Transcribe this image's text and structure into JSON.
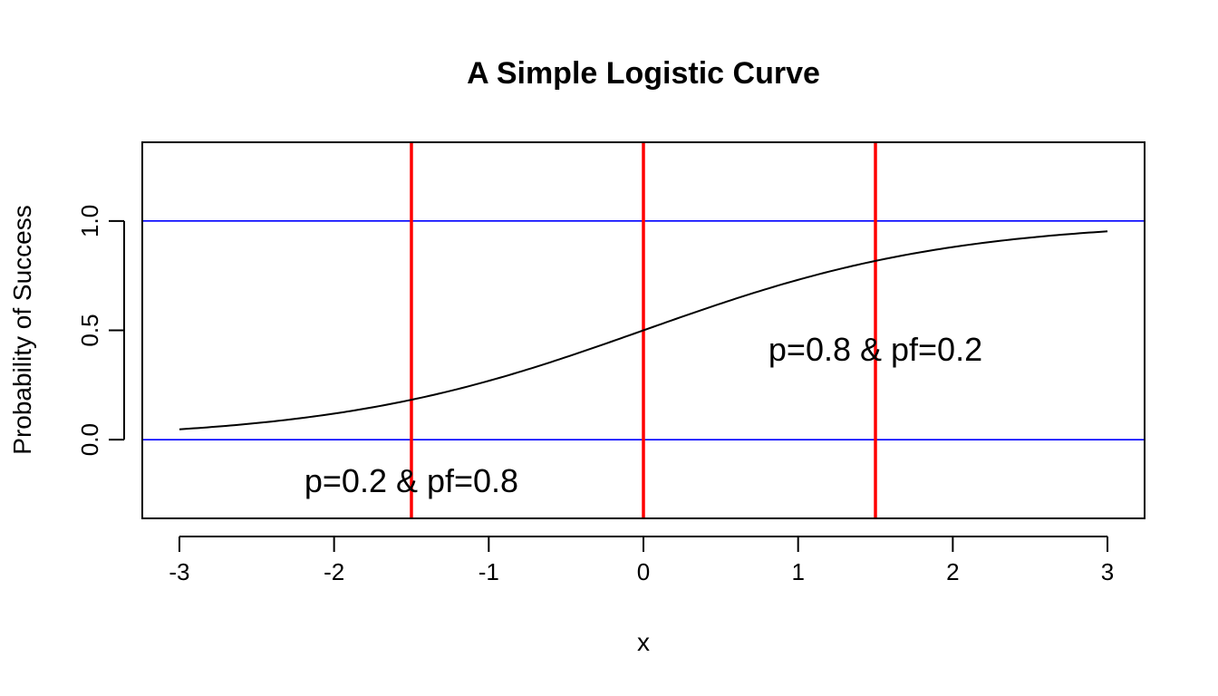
{
  "chart_data": {
    "type": "line",
    "title": "A Simple Logistic Curve",
    "xlabel": "x",
    "ylabel": "Probability of Success",
    "xlim": [
      -3.24,
      3.24
    ],
    "ylim": [
      -0.36,
      1.36
    ],
    "grid": false,
    "x_ticks": [
      -3,
      -2,
      -1,
      0,
      1,
      2,
      3
    ],
    "y_ticks": [
      0.0,
      0.5,
      1.0
    ],
    "y_tick_labels": [
      "0.0",
      "0.5",
      "1.0"
    ],
    "x_tick_labels": [
      "-3",
      "-2",
      "-1",
      "0",
      "1",
      "2",
      "3"
    ],
    "series": [
      {
        "function": "logistic",
        "x": [
          -3.0,
          -2.5,
          -2.0,
          -1.5,
          -1.0,
          -0.5,
          0.0,
          0.5,
          1.0,
          1.5,
          2.0,
          2.5,
          3.0
        ],
        "values": [
          0.047,
          0.076,
          0.119,
          0.182,
          0.269,
          0.378,
          0.5,
          0.622,
          0.731,
          0.818,
          0.881,
          0.924,
          0.953
        ],
        "color": "#000000"
      }
    ],
    "hlines": [
      {
        "y": 0.0,
        "color": "#0000ff"
      },
      {
        "y": 1.0,
        "color": "#0000ff"
      }
    ],
    "vlines": [
      {
        "x": -1.5,
        "color": "#ff0000"
      },
      {
        "x": 0.0,
        "color": "#ff0000"
      },
      {
        "x": 1.5,
        "color": "#ff0000"
      }
    ],
    "annotations": [
      {
        "text": "p=0.2 & pf=0.8",
        "x": -1.5,
        "y": -0.19
      },
      {
        "text": "p=0.8 & pf=0.2",
        "x": 1.5,
        "y": 0.41
      }
    ]
  }
}
